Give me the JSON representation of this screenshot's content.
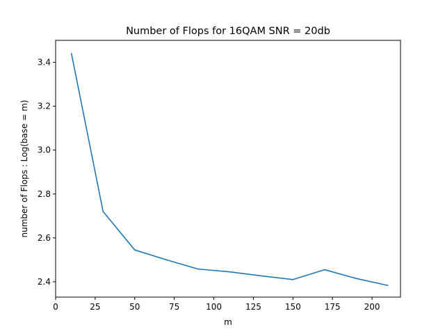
{
  "chart_data": {
    "type": "line",
    "title": "Number of Flops for 16QAM SNR = 20db",
    "xlabel": "m",
    "ylabel": "number of Flops : Log(base = m)",
    "xlim": [
      0,
      218
    ],
    "ylim": [
      2.33,
      3.5
    ],
    "xticks": [
      0,
      25,
      50,
      75,
      100,
      125,
      150,
      175,
      200
    ],
    "yticks": [
      2.4,
      2.6,
      2.8,
      3.0,
      3.2,
      3.4
    ],
    "ytick_labels": [
      "2.4",
      "2.6",
      "2.8",
      "3.0",
      "3.2",
      "3.4"
    ],
    "grid": false,
    "series": [
      {
        "color": "#1f77b4",
        "x": [
          10,
          30,
          50,
          70,
          90,
          110,
          130,
          150,
          170,
          190,
          210
        ],
        "y": [
          3.44,
          2.72,
          2.545,
          2.5,
          2.458,
          2.445,
          2.427,
          2.41,
          2.455,
          2.415,
          2.383
        ]
      }
    ]
  }
}
